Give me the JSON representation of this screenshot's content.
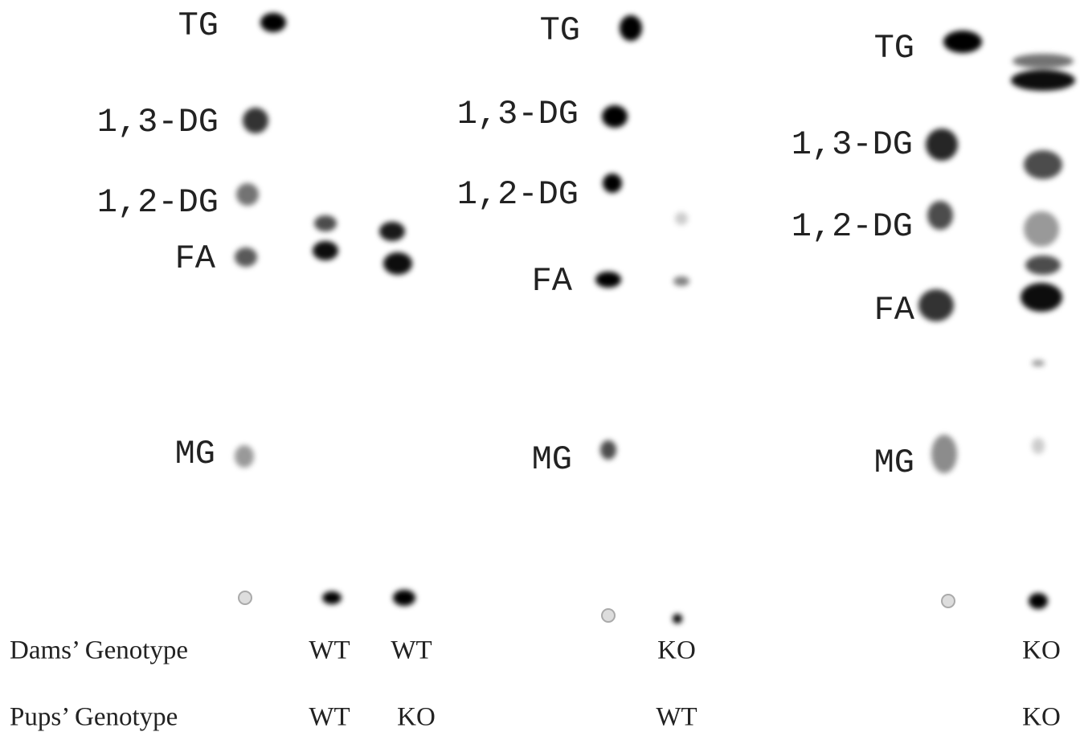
{
  "panels": [
    {
      "standards": [
        "TG",
        "1,3-DG",
        "1,2-DG",
        "FA",
        "MG"
      ],
      "dams": [
        "WT",
        "WT"
      ],
      "pups": [
        "WT",
        "KO"
      ]
    },
    {
      "standards": [
        "TG",
        "1,3-DG",
        "1,2-DG",
        "FA",
        "MG"
      ],
      "dams": [
        "KO"
      ],
      "pups": [
        "WT"
      ]
    },
    {
      "standards": [
        "TG",
        "1,3-DG",
        "1,2-DG",
        "FA",
        "MG"
      ],
      "dams": [
        "KO"
      ],
      "pups": [
        "KO"
      ]
    }
  ],
  "row_labels": {
    "dams": "Dams’ Genotype",
    "pups": "Pups’ Genotype"
  }
}
